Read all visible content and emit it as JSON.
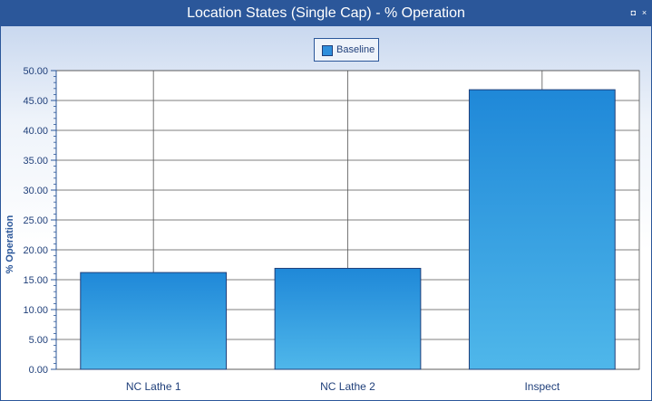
{
  "window": {
    "title": "Location States (Single Cap) - % Operation",
    "restore_glyph": "◘",
    "close_glyph": "×"
  },
  "colors": {
    "accent": "#2b579a",
    "bar_top": "#1f88d8",
    "bar_bottom": "#4fb7ea",
    "grid": "#555555"
  },
  "chart_data": {
    "type": "bar",
    "title": "Location States (Single Cap) - % Operation",
    "categories": [
      "NC Lathe 1",
      "NC Lathe 2",
      "Inspect"
    ],
    "series": [
      {
        "name": "Baseline",
        "values": [
          16.2,
          16.9,
          46.8
        ]
      }
    ],
    "xlabel": "",
    "ylabel": "% Operation",
    "ylim": [
      0,
      50
    ],
    "yticks": [
      "0.00",
      "5.00",
      "10.00",
      "15.00",
      "20.00",
      "25.00",
      "30.00",
      "35.00",
      "40.00",
      "45.00",
      "50.00"
    ],
    "grid": true,
    "legend_position": "top-center"
  }
}
